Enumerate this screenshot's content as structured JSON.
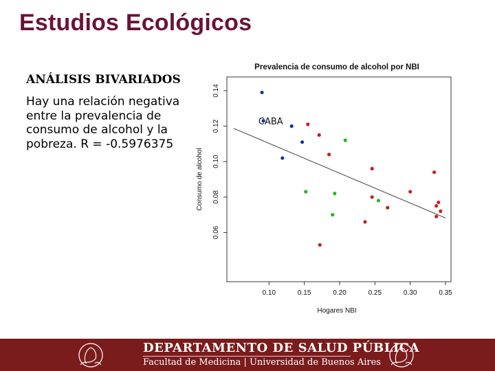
{
  "slide": {
    "title": "Estudios Ecológicos",
    "subheading": "ANÁLISIS BIVARIADOS",
    "body": "Hay una relación negativa entre la prevalencia de consumo de alcohol y la pobreza. R = -0.5976375"
  },
  "footer": {
    "line1": "DEPARTAMENTO DE SALUD PÚBLICA",
    "line2": "Facultad de Medicina | Universidad de Buenos Aires",
    "background": "#7a1c1c"
  },
  "chart_data": {
    "type": "scatter",
    "title": "Prevalencia de consumo de alcohol por NBI",
    "xlabel": "Hogares NBI",
    "ylabel": "Consumo de alcohol",
    "xlim": [
      0.05,
      0.35
    ],
    "ylim": [
      0.04,
      0.14
    ],
    "x_ticks": [
      "0.10",
      "0.15",
      "0.20",
      "0.25",
      "0.30",
      "0.35"
    ],
    "y_ticks": [
      "0.06",
      "0.08",
      "0.10",
      "0.12",
      "0.14"
    ],
    "grid": false,
    "annotations": [
      {
        "text": "CABA",
        "x": 0.085,
        "y": 0.121
      }
    ],
    "trend_line": {
      "x": [
        0.05,
        0.35
      ],
      "y": [
        0.1187,
        0.0682
      ]
    },
    "series": [
      {
        "color": "#1f2fa8",
        "points": [
          [
            0.09,
            0.139
          ],
          [
            0.092,
            0.123
          ],
          [
            0.132,
            0.12
          ],
          [
            0.147,
            0.111
          ],
          [
            0.119,
            0.102
          ]
        ]
      },
      {
        "color": "#22b822",
        "points": [
          [
            0.208,
            0.112
          ],
          [
            0.152,
            0.083
          ],
          [
            0.193,
            0.082
          ],
          [
            0.255,
            0.078
          ],
          [
            0.19,
            0.07
          ]
        ]
      },
      {
        "color": "#c81e1e",
        "points": [
          [
            0.155,
            0.121
          ],
          [
            0.171,
            0.115
          ],
          [
            0.185,
            0.104
          ],
          [
            0.246,
            0.096
          ],
          [
            0.3,
            0.083
          ],
          [
            0.334,
            0.094
          ],
          [
            0.246,
            0.08
          ],
          [
            0.268,
            0.074
          ],
          [
            0.34,
            0.077
          ],
          [
            0.337,
            0.075
          ],
          [
            0.343,
            0.072
          ],
          [
            0.337,
            0.069
          ],
          [
            0.236,
            0.066
          ],
          [
            0.172,
            0.053
          ]
        ]
      }
    ]
  }
}
